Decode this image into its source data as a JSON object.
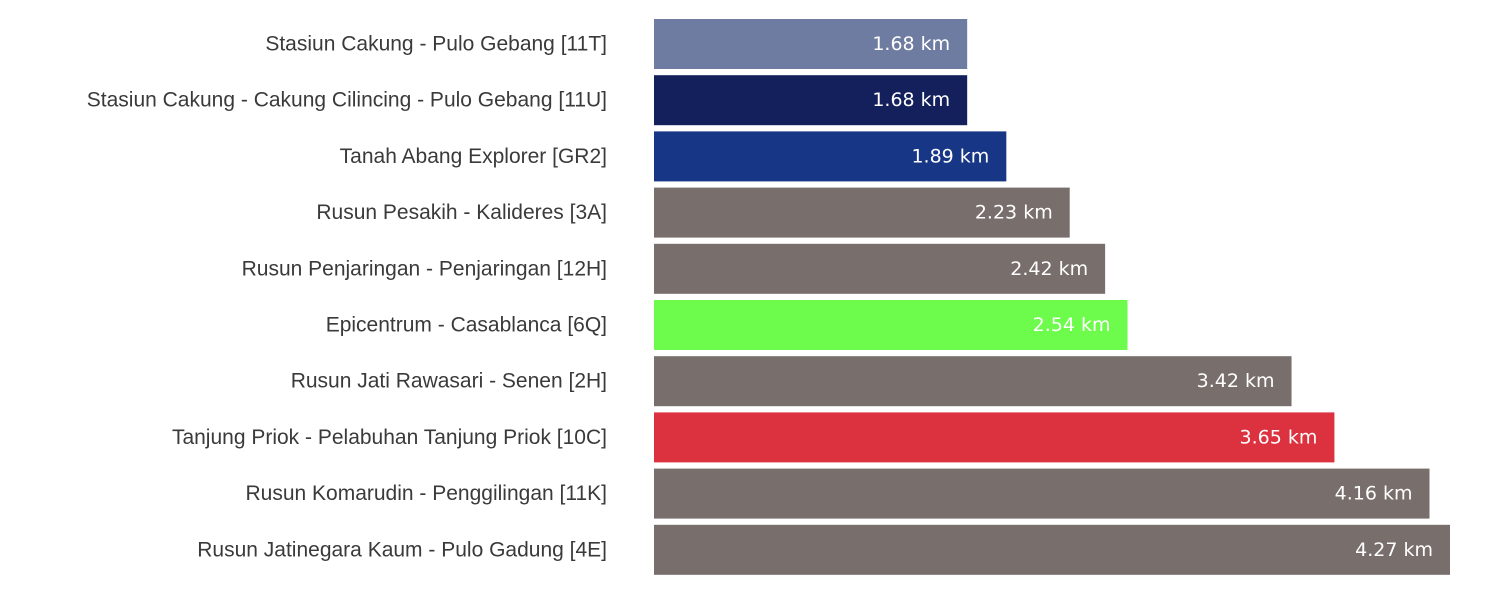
{
  "chart_data": {
    "type": "bar",
    "orientation": "horizontal",
    "categories": [
      "Stasiun Cakung - Pulo Gebang [11T]",
      "Stasiun Cakung - Cakung Cilincing - Pulo Gebang [11U]",
      "Tanah Abang Explorer [GR2]",
      "Rusun Pesakih - Kalideres [3A]",
      "Rusun Penjaringan - Penjaringan [12H]",
      "Epicentrum - Casablanca [6Q]",
      "Rusun Jati Rawasari - Senen [2H]",
      "Tanjung Priok - Pelabuhan Tanjung Priok [10C]",
      "Rusun Komarudin - Penggilingan [11K]",
      "Rusun Jatinegara Kaum - Pulo Gadung [4E]"
    ],
    "values": [
      1.68,
      1.68,
      1.89,
      2.23,
      2.42,
      2.54,
      3.42,
      3.65,
      4.16,
      4.27
    ],
    "value_labels": [
      "1.68 km",
      "1.68 km",
      "1.89 km",
      "2.23 km",
      "2.42 km",
      "2.54 km",
      "3.42 km",
      "3.65 km",
      "4.16 km",
      "4.27 km"
    ],
    "colors": [
      "#6e7ca1",
      "#13205c",
      "#183686",
      "#786e6b",
      "#786e6b",
      "#6dfc4b",
      "#786e6b",
      "#dc313e",
      "#786e6b",
      "#786e6b"
    ],
    "xlim": [
      0,
      4.27
    ],
    "grid": false,
    "legend": "none"
  }
}
